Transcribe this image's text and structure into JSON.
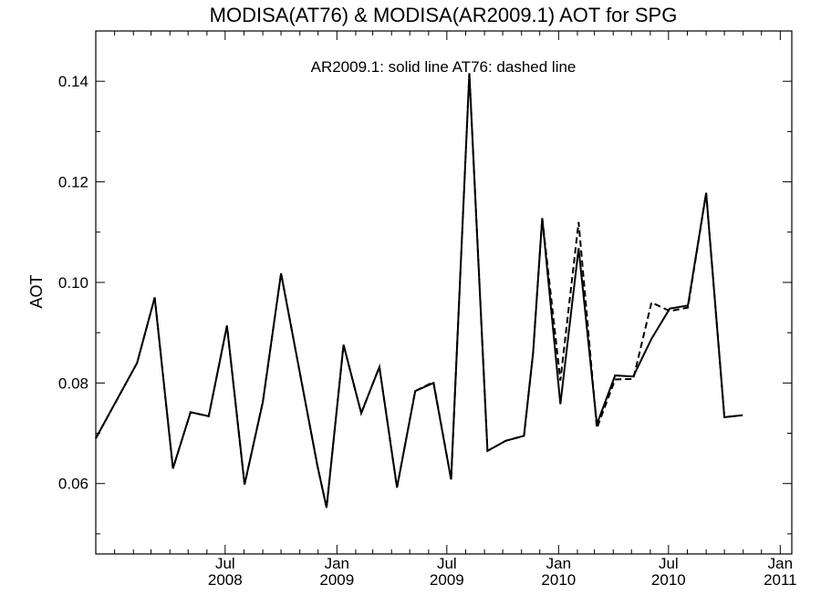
{
  "chart_data": {
    "type": "line",
    "title": "MODISA(AT76) & MODISA(AR2009.1)  AOT for SPG",
    "annotation": "AR2009.1: solid line   AT76: dashed line",
    "xlabel": "",
    "ylabel": "AOT",
    "ylim": [
      0.046,
      0.15
    ],
    "xlim": [
      "2007-12-01",
      "2011-01-20"
    ],
    "y_ticks": [
      "0.06",
      "0.08",
      "0.10",
      "0.12",
      "0.14"
    ],
    "x_ticks": [
      {
        "date": "2008-07-01",
        "month": "Jul",
        "year": "2008"
      },
      {
        "date": "2009-01-01",
        "month": "Jan",
        "year": "2009"
      },
      {
        "date": "2009-07-01",
        "month": "Jul",
        "year": "2009"
      },
      {
        "date": "2010-01-01",
        "month": "Jan",
        "year": "2010"
      },
      {
        "date": "2010-07-01",
        "month": "Jul",
        "year": "2010"
      },
      {
        "date": "2011-01-01",
        "month": "Jan",
        "year": "2011"
      }
    ],
    "grid": false,
    "series": [
      {
        "name": "AR2009.1",
        "style": "solid",
        "color": "#000000",
        "points": [
          [
            "2007-12-01",
            0.069
          ],
          [
            "2008-02-07",
            0.084
          ],
          [
            "2008-03-07",
            0.097
          ],
          [
            "2008-04-06",
            0.063
          ],
          [
            "2008-05-05",
            0.0742
          ],
          [
            "2008-06-04",
            0.0734
          ],
          [
            "2008-07-04",
            0.0914
          ],
          [
            "2008-08-02",
            0.0598
          ],
          [
            "2008-09-01",
            0.0762
          ],
          [
            "2008-10-01",
            0.1018
          ],
          [
            "2008-11-30",
            0.0635
          ],
          [
            "2008-12-15",
            0.0552
          ],
          [
            "2009-01-12",
            0.0876
          ],
          [
            "2009-02-10",
            0.074
          ],
          [
            "2009-03-12",
            0.0832
          ],
          [
            "2009-04-10",
            0.0592
          ],
          [
            "2009-05-10",
            0.0784
          ],
          [
            "2009-06-09",
            0.08
          ],
          [
            "2009-07-08",
            0.0608
          ],
          [
            "2009-08-07",
            0.1416
          ],
          [
            "2009-09-06",
            0.0665
          ],
          [
            "2009-10-06",
            0.0685
          ],
          [
            "2009-11-05",
            0.0695
          ],
          [
            "2009-11-20",
            0.086
          ],
          [
            "2009-12-05",
            0.1128
          ],
          [
            "2010-01-04",
            0.0758
          ],
          [
            "2010-02-03",
            0.1068
          ],
          [
            "2010-03-05",
            0.0718
          ],
          [
            "2010-04-04",
            0.0815
          ],
          [
            "2010-05-04",
            0.0813
          ],
          [
            "2010-06-03",
            0.0888
          ],
          [
            "2010-07-03",
            0.0948
          ],
          [
            "2010-08-02",
            0.0954
          ],
          [
            "2010-09-01",
            0.1178
          ],
          [
            "2010-10-01",
            0.0732
          ],
          [
            "2010-10-31",
            0.0736
          ]
        ]
      },
      {
        "name": "AT76",
        "style": "dashed",
        "color": "#000000",
        "points": [
          [
            "2007-12-01",
            0.069
          ],
          [
            "2008-02-07",
            0.084
          ],
          [
            "2008-03-07",
            0.097
          ],
          [
            "2008-04-06",
            0.063
          ],
          [
            "2008-05-05",
            0.0742
          ],
          [
            "2008-06-04",
            0.0734
          ],
          [
            "2008-07-04",
            0.0914
          ],
          [
            "2008-08-02",
            0.0598
          ],
          [
            "2008-09-01",
            0.0762
          ],
          [
            "2008-10-01",
            0.1018
          ],
          [
            "2008-11-30",
            0.0635
          ],
          [
            "2008-12-15",
            0.0552
          ],
          [
            "2009-01-12",
            0.0876
          ],
          [
            "2009-02-10",
            0.074
          ],
          [
            "2009-03-12",
            0.0832
          ],
          [
            "2009-04-10",
            0.0592
          ],
          [
            "2009-05-10",
            0.0784
          ],
          [
            "2009-06-09",
            0.0802
          ],
          [
            "2009-07-08",
            0.0608
          ],
          [
            "2009-08-07",
            0.1416
          ],
          [
            "2009-09-06",
            0.0665
          ],
          [
            "2009-10-06",
            0.0685
          ],
          [
            "2009-11-05",
            0.0695
          ],
          [
            "2009-11-20",
            0.086
          ],
          [
            "2009-12-05",
            0.1128
          ],
          [
            "2010-01-04",
            0.0805
          ],
          [
            "2010-02-03",
            0.112
          ],
          [
            "2010-03-05",
            0.071
          ],
          [
            "2010-04-04",
            0.0807
          ],
          [
            "2010-05-04",
            0.0808
          ],
          [
            "2010-06-03",
            0.096
          ],
          [
            "2010-07-03",
            0.0943
          ],
          [
            "2010-08-02",
            0.095
          ],
          [
            "2010-09-01",
            0.1178
          ],
          [
            "2010-10-01",
            0.0732
          ],
          [
            "2010-10-31",
            0.0736
          ]
        ]
      }
    ]
  }
}
